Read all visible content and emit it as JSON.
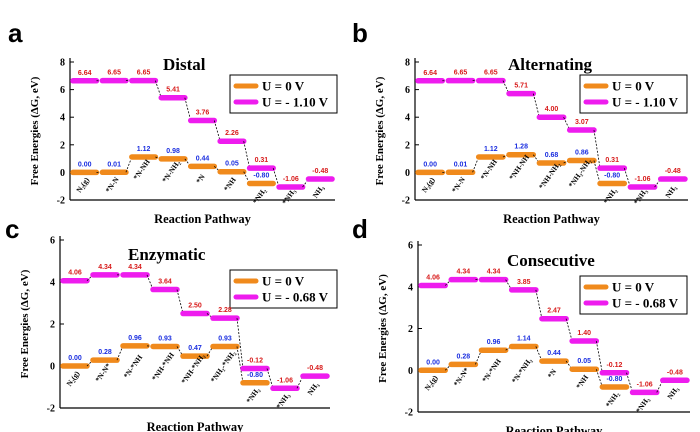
{
  "colors": {
    "series0": "#f08a1c",
    "series1": "#ee1cee",
    "series0_label": "#1a2ee0",
    "series1_label": "#d81a1a",
    "connector": "#000000"
  },
  "chart_data": [
    {
      "type": "line",
      "panel": "a",
      "title": "Distal",
      "xlabel": "Reaction Pathway",
      "ylabel": "Free Energies (ΔG, eV)",
      "ylim": [
        -2,
        8
      ],
      "yticks": [
        "-2",
        "0",
        "2",
        "4",
        "6",
        "8"
      ],
      "categories": [
        "N₂(g)",
        "*N-N",
        "*N-NH",
        "*N-NH₂",
        "*N",
        "*NH",
        "*NH₂",
        "*NH₃",
        "NH₃"
      ],
      "series": [
        {
          "name": "U = 0 V",
          "values": [
            0.0,
            0.01,
            1.12,
            0.98,
            0.44,
            0.05,
            -0.8,
            null,
            null
          ],
          "labels": [
            "0.00",
            "0.01",
            "1.12",
            "0.98",
            "0.44",
            "0.05",
            "-0.80",
            null,
            null
          ]
        },
        {
          "name": "U = - 1.10 V",
          "values": [
            6.64,
            6.65,
            6.65,
            5.41,
            3.76,
            2.26,
            0.31,
            -1.06,
            -0.48
          ],
          "labels": [
            "6.64",
            "6.65",
            "6.65",
            "5.41",
            "3.76",
            "2.26",
            "0.31",
            "-1.06",
            "-0.48"
          ]
        }
      ]
    },
    {
      "type": "line",
      "panel": "b",
      "title": "Alternating",
      "xlabel": "Reaction Pathway",
      "ylabel": "Free Energies (ΔG, eV)",
      "ylim": [
        -2,
        8
      ],
      "yticks": [
        "-2",
        "0",
        "2",
        "4",
        "6",
        "8"
      ],
      "categories": [
        "N₂(g)",
        "*N-N",
        "*N-NH",
        "*NH-NH",
        "*NH-NH₂",
        "*NH₂-NH₂",
        "*NH₂",
        "*NH₃",
        "NH₃"
      ],
      "series": [
        {
          "name": "U = 0 V",
          "values": [
            0.0,
            0.01,
            1.12,
            1.28,
            0.68,
            0.86,
            -0.8,
            null,
            null
          ],
          "labels": [
            "0.00",
            "0.01",
            "1.12",
            "1.28",
            "0.68",
            "0.86",
            "-0.80",
            null,
            null
          ]
        },
        {
          "name": "U = - 1.10 V",
          "values": [
            6.64,
            6.65,
            6.65,
            5.71,
            4.0,
            3.07,
            0.31,
            -1.06,
            -0.48
          ],
          "labels": [
            "6.64",
            "6.65",
            "6.65",
            "5.71",
            "4.00",
            "3.07",
            "0.31",
            "-1.06",
            "-0.48"
          ]
        }
      ]
    },
    {
      "type": "line",
      "panel": "c",
      "title": "Enzymatic",
      "xlabel": "Reaction Pathway",
      "ylabel": "Free Energies (ΔG, eV)",
      "ylim": [
        -2,
        6
      ],
      "yticks": [
        "-2",
        "0",
        "2",
        "4",
        "6"
      ],
      "categories": [
        "N₂(g)",
        "*N-N*",
        "*N-*NH",
        "*NH-*NH",
        "*NH-*NH₂",
        "*NH₂-*NH₂",
        "*NH₂",
        "*NH₃",
        "NH₃"
      ],
      "series": [
        {
          "name": "U = 0 V",
          "values": [
            0.0,
            0.28,
            0.96,
            0.93,
            0.47,
            0.93,
            -0.8,
            null,
            null
          ],
          "labels": [
            "0.00",
            "0.28",
            "0.96",
            "0.93",
            "0.47",
            "0.93",
            "-0.80",
            null,
            null
          ]
        },
        {
          "name": "U = - 0.68 V",
          "values": [
            4.06,
            4.34,
            4.34,
            3.64,
            2.5,
            2.28,
            -0.12,
            -1.06,
            -0.48
          ],
          "labels": [
            "4.06",
            "4.34",
            "4.34",
            "3.64",
            "2.50",
            "2.28",
            "-0.12",
            "-1.06",
            "-0.48"
          ]
        }
      ]
    },
    {
      "type": "line",
      "panel": "d",
      "title": "Consecutive",
      "xlabel": "Reaction Pathway",
      "ylabel": "Free Energies (ΔG, eV)",
      "ylim": [
        -2,
        6
      ],
      "yticks": [
        "-2",
        "0",
        "2",
        "4",
        "6"
      ],
      "categories": [
        "N₂(g)",
        "*N-N*",
        "*N-*NH",
        "*N-*NH₂",
        "*N",
        "*NH",
        "*NH₂",
        "*NH₃",
        "NH₃"
      ],
      "series": [
        {
          "name": "U = 0 V",
          "values": [
            0.0,
            0.28,
            0.96,
            1.14,
            0.44,
            0.05,
            -0.8,
            null,
            null
          ],
          "labels": [
            "0.00",
            "0.28",
            "0.96",
            "1.14",
            "0.44",
            "0.05",
            "-0.80",
            null,
            null
          ]
        },
        {
          "name": "U = - 0.68 V",
          "values": [
            4.06,
            4.34,
            4.34,
            3.85,
            2.47,
            1.4,
            -0.12,
            -1.06,
            -0.48
          ],
          "labels": [
            "4.06",
            "4.34",
            "4.34",
            "3.85",
            "2.47",
            "1.40",
            "-0.12",
            "-1.06",
            "-0.48"
          ]
        }
      ]
    }
  ]
}
